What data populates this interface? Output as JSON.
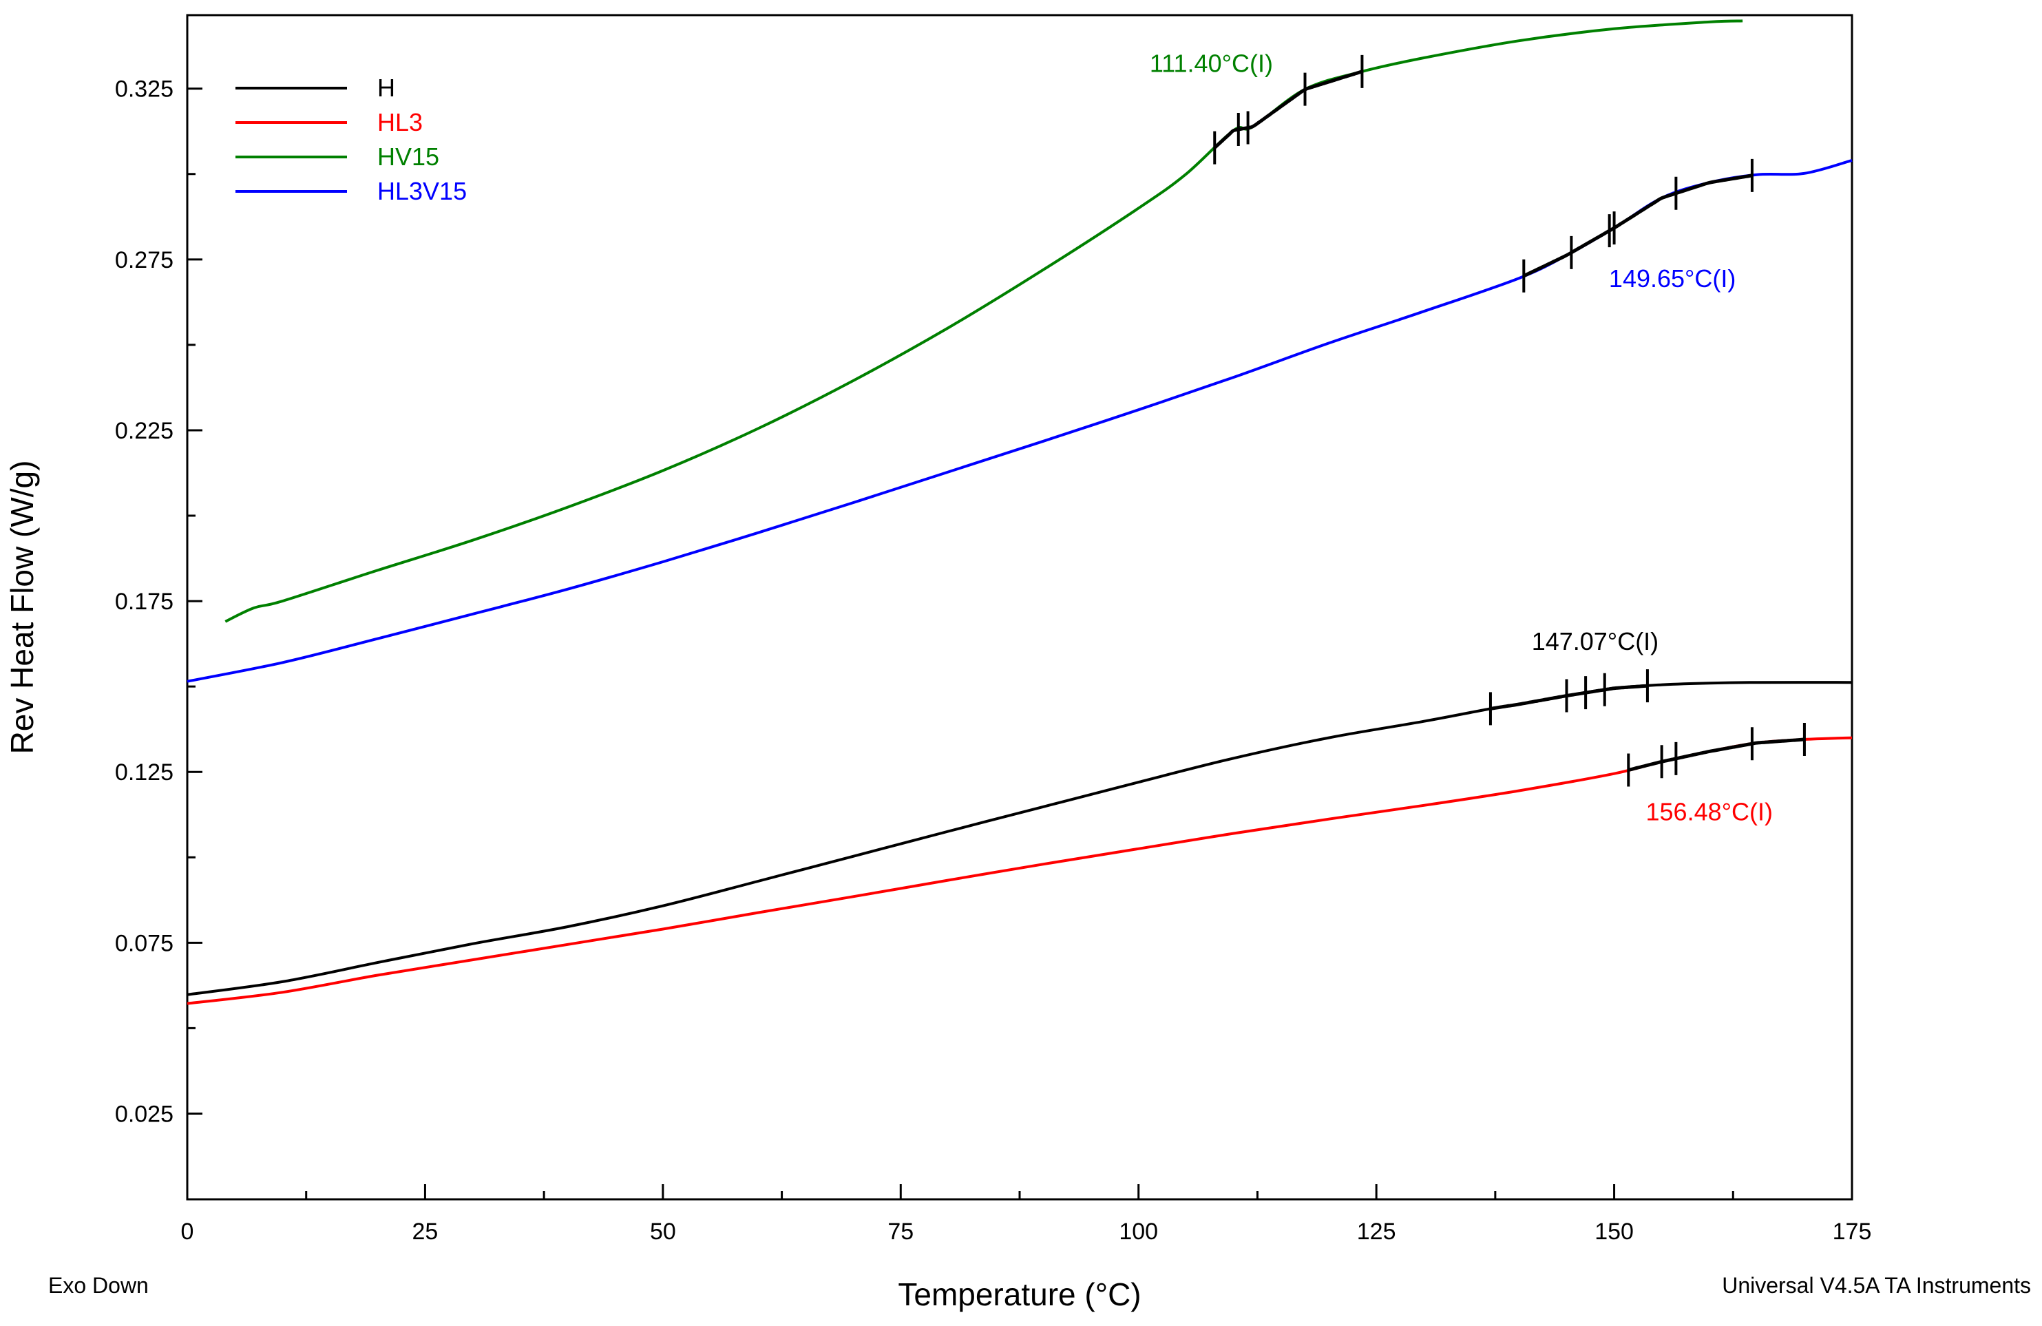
{
  "chart_data": {
    "type": "line",
    "xlabel": "Temperature (°C)",
    "ylabel": "Rev Heat Flow (W/g)",
    "xlim": [
      0,
      175
    ],
    "ylim": [
      -0.0001,
      0.3465
    ],
    "xticks": [
      0,
      25,
      50,
      75,
      100,
      125,
      150,
      175
    ],
    "yticks": [
      0.025,
      0.075,
      0.125,
      0.175,
      0.225,
      0.275,
      0.325
    ],
    "grid": false,
    "legend_position": "top-left",
    "footer_left": "Exo Down",
    "footer_right": "Universal V4.5A TA Instruments",
    "series": [
      {
        "name": "H",
        "color": "#000000",
        "x": [
          0,
          10,
          20,
          30,
          40,
          50,
          60,
          70,
          80,
          90,
          100,
          110,
          120,
          130,
          137,
          140,
          145,
          150,
          155,
          160,
          165,
          175
        ],
        "y": [
          0.0598,
          0.0636,
          0.0692,
          0.0747,
          0.0797,
          0.0858,
          0.093,
          0.1003,
          0.1076,
          0.1148,
          0.122,
          0.129,
          0.135,
          0.1398,
          0.1435,
          0.1448,
          0.1473,
          0.1495,
          0.1505,
          0.151,
          0.1512,
          0.1512
        ],
        "annotation": "147.07°C(I)",
        "markers_x": [
          137,
          145,
          147,
          149,
          153.5
        ]
      },
      {
        "name": "HL3",
        "color": "#ff0000",
        "x": [
          0,
          10,
          20,
          30,
          40,
          50,
          60,
          70,
          80,
          90,
          100,
          110,
          120,
          130,
          140,
          150,
          155,
          160,
          165,
          170,
          175
        ],
        "y": [
          0.0572,
          0.0605,
          0.0655,
          0.07,
          0.0745,
          0.079,
          0.0838,
          0.0885,
          0.0933,
          0.098,
          0.1025,
          0.107,
          0.1112,
          0.1152,
          0.1195,
          0.1245,
          0.128,
          0.131,
          0.1335,
          0.1345,
          0.135
        ],
        "annotation": "156.48°C(I)",
        "markers_x": [
          151.5,
          155,
          156.5,
          164.5,
          170
        ]
      },
      {
        "name": "HV15",
        "color": "#008000",
        "x": [
          4,
          7,
          10,
          20,
          30,
          40,
          50,
          60,
          70,
          80,
          90,
          100,
          105,
          110,
          112,
          117.5,
          123.5,
          130,
          140,
          150,
          160,
          163.5
        ],
        "y": [
          0.169,
          0.173,
          0.175,
          0.184,
          0.1928,
          0.2025,
          0.2132,
          0.2255,
          0.2395,
          0.255,
          0.272,
          0.29,
          0.3,
          0.3128,
          0.3138,
          0.3248,
          0.33,
          0.334,
          0.339,
          0.3425,
          0.3445,
          0.3448
        ],
        "annotation": "111.40°C(I)",
        "markers_x": [
          108,
          110.5,
          111.5,
          117.5,
          123.5
        ]
      },
      {
        "name": "HL3V15",
        "color": "#0000ff",
        "x": [
          0,
          10,
          20,
          30,
          40,
          50,
          60,
          70,
          80,
          90,
          100,
          110,
          120,
          130,
          140,
          145,
          150,
          155,
          160,
          165,
          170,
          175
        ],
        "y": [
          0.1515,
          0.157,
          0.164,
          0.1712,
          0.1785,
          0.1865,
          0.195,
          0.2038,
          0.2128,
          0.2218,
          0.231,
          0.2405,
          0.2505,
          0.2598,
          0.2695,
          0.2762,
          0.2842,
          0.293,
          0.2975,
          0.2998,
          0.3002,
          0.304
        ],
        "annotation": "149.65°C(I)",
        "markers_x": [
          140.5,
          145.5,
          149.5,
          150,
          156.5,
          164.5
        ]
      }
    ]
  }
}
